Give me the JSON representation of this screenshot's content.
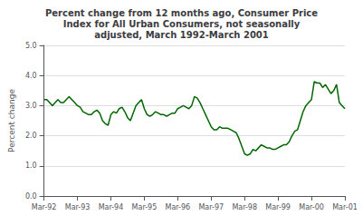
{
  "chart_data": {
    "type": "line",
    "title": "Percent change from 12 months ago, Consumer Price\nIndex for All Urban Consumers, not seasonally\nadjusted, March 1992-March 2001",
    "ylabel": "Percent change",
    "color": "#006600",
    "grid": true,
    "ylim": [
      0.0,
      5.0
    ],
    "yticks": [
      {
        "value": 0.0,
        "label": "0.0"
      },
      {
        "value": 1.0,
        "label": "1.0"
      },
      {
        "value": 2.0,
        "label": "2.0"
      },
      {
        "value": 3.0,
        "label": "3.0"
      },
      {
        "value": 4.0,
        "label": "4.0"
      },
      {
        "value": 5.0,
        "label": "5.0"
      }
    ],
    "categories": [
      "Mar-92",
      null,
      null,
      null,
      null,
      null,
      null,
      null,
      null,
      null,
      null,
      null,
      "Mar-93",
      null,
      null,
      null,
      null,
      null,
      null,
      null,
      null,
      null,
      null,
      null,
      "Mar-94",
      null,
      null,
      null,
      null,
      null,
      null,
      null,
      null,
      null,
      null,
      null,
      "Mar-95",
      null,
      null,
      null,
      null,
      null,
      null,
      null,
      null,
      null,
      null,
      null,
      "Mar-96",
      null,
      null,
      null,
      null,
      null,
      null,
      null,
      null,
      null,
      null,
      null,
      "Mar-97",
      null,
      null,
      null,
      null,
      null,
      null,
      null,
      null,
      null,
      null,
      null,
      "Mar-98",
      null,
      null,
      null,
      null,
      null,
      null,
      null,
      null,
      null,
      null,
      null,
      "Mar-99",
      null,
      null,
      null,
      null,
      null,
      null,
      null,
      null,
      null,
      null,
      null,
      "Mar-00",
      null,
      null,
      null,
      null,
      null,
      null,
      null,
      null,
      null,
      null,
      null,
      "Mar-01"
    ],
    "values": [
      3.2,
      3.2,
      3.1,
      3.0,
      3.1,
      3.2,
      3.1,
      3.1,
      3.2,
      3.3,
      3.2,
      3.1,
      3.0,
      2.95,
      2.8,
      2.75,
      2.7,
      2.7,
      2.8,
      2.85,
      2.75,
      2.5,
      2.4,
      2.35,
      2.7,
      2.8,
      2.75,
      2.9,
      2.95,
      2.8,
      2.6,
      2.5,
      2.75,
      3.0,
      3.1,
      3.2,
      2.9,
      2.7,
      2.65,
      2.7,
      2.8,
      2.75,
      2.7,
      2.7,
      2.65,
      2.7,
      2.75,
      2.75,
      2.9,
      2.95,
      3.0,
      2.95,
      2.9,
      3.0,
      3.3,
      3.25,
      3.1,
      2.9,
      2.7,
      2.5,
      2.3,
      2.2,
      2.2,
      2.3,
      2.25,
      2.25,
      2.25,
      2.2,
      2.15,
      2.1,
      1.9,
      1.65,
      1.4,
      1.35,
      1.4,
      1.55,
      1.5,
      1.6,
      1.7,
      1.65,
      1.6,
      1.6,
      1.55,
      1.55,
      1.6,
      1.65,
      1.7,
      1.7,
      1.8,
      2.0,
      2.15,
      2.2,
      2.5,
      2.8,
      3.0,
      3.1,
      3.2,
      3.8,
      3.75,
      3.75,
      3.6,
      3.7,
      3.55,
      3.4,
      3.5,
      3.7,
      3.1,
      3.0,
      2.9
    ]
  }
}
